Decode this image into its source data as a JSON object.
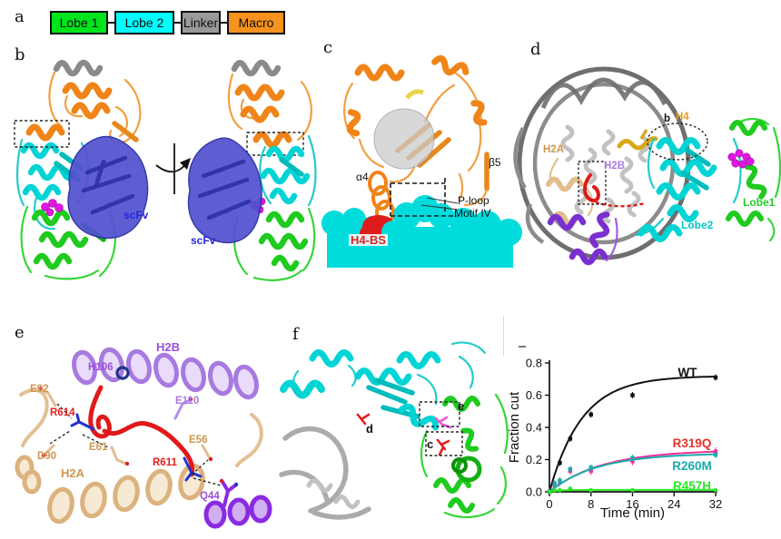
{
  "panel_a": {
    "letter": "a",
    "domains": [
      {
        "label": "Lobe 1",
        "color": "#00e41c"
      },
      {
        "label": "Lobe 2",
        "color": "#00ffff"
      },
      {
        "label": "Linker",
        "color": "#999999"
      },
      {
        "label": "Macro",
        "color": "#f6921e"
      }
    ]
  },
  "panel_b": {
    "letter": "b",
    "scfv_left": "scFv",
    "scfv_right": "scFv"
  },
  "panel_c": {
    "letter": "c",
    "alpha4": "α4",
    "beta5": "β5",
    "p_loop": "P-loop",
    "motif_iv": "Motif IV",
    "h4_bs": "H4-BS"
  },
  "panel_d": {
    "letter": "d",
    "h2a": "H2A",
    "h2b": "H2B",
    "inset_ref": "b",
    "h4": "H4",
    "lobe1": "Lobe1",
    "lobe2": "Lobe2"
  },
  "panel_e": {
    "letter": "e",
    "h2b": "H2B",
    "h106": "H106",
    "e92": "E92",
    "r614": "R614",
    "e110": "E110",
    "e61": "E61",
    "e56": "E56",
    "d90": "D90",
    "h2a": "H2A",
    "r611": "R611",
    "q44": "Q44"
  },
  "panel_f": {
    "letter": "f",
    "ref_c": "c",
    "ref_d": "d",
    "ref_e": "e"
  },
  "palette": {
    "lobe1_green": "#00e41c",
    "lobe2_cyan": "#00ffff",
    "linker_gray": "#999999",
    "macro_orange": "#f6921e",
    "scfv_blue": "#2828e0",
    "h2a_wheat": "#cc9752",
    "h2b_purple": "#9b4fd6",
    "h4_gold": "#e8a020",
    "hotspot_red": "#e02020",
    "ubiquitin_magenta": "#e018e0"
  },
  "chart_data": {
    "type": "line",
    "title": "",
    "xlabel": "Time (min)",
    "ylabel": "Fraction cut",
    "xlim": [
      0,
      32
    ],
    "ylim": [
      0,
      0.8
    ],
    "xticks": [
      "0",
      "8",
      "16",
      "24",
      "32"
    ],
    "yticks": [
      "0.0",
      "0.2",
      "0.4",
      "0.6",
      "0.8"
    ],
    "grid": false,
    "legend_position": "labels-at-curves",
    "x": [
      0,
      1,
      2,
      4,
      8,
      16,
      32
    ],
    "series": [
      {
        "name": "WT",
        "label_color": "#111111",
        "line_color": "#111111",
        "marker": "square",
        "err": 0.02,
        "values": [
          0,
          0.05,
          0.18,
          0.33,
          0.48,
          0.6,
          0.71
        ],
        "fit": {
          "A": 0.72,
          "k": 0.16
        }
      },
      {
        "name": "R319Q",
        "label_color": "#e8332a",
        "line_color": "#ef2f9b",
        "marker": "square",
        "err": 0.025,
        "values": [
          0,
          0.04,
          0.06,
          0.13,
          0.13,
          0.19,
          0.25
        ],
        "fit": {
          "A": 0.26,
          "k": 0.1
        }
      },
      {
        "name": "R260M",
        "label_color": "#1aabab",
        "line_color": "#1aabab",
        "marker": "square",
        "err": 0.02,
        "values": [
          0,
          0.05,
          0.07,
          0.14,
          0.15,
          0.21,
          0.23
        ],
        "fit": {
          "A": 0.24,
          "k": 0.11
        }
      },
      {
        "name": "R457H",
        "label_color": "#2ce626",
        "line_color": "#2ce626",
        "marker": "circle",
        "err": 0,
        "values": [
          0,
          0.01,
          0.01,
          0.02,
          0.01,
          0.01,
          0.01
        ],
        "fit": {
          "A": 0.012,
          "k": 0.5
        }
      }
    ]
  }
}
